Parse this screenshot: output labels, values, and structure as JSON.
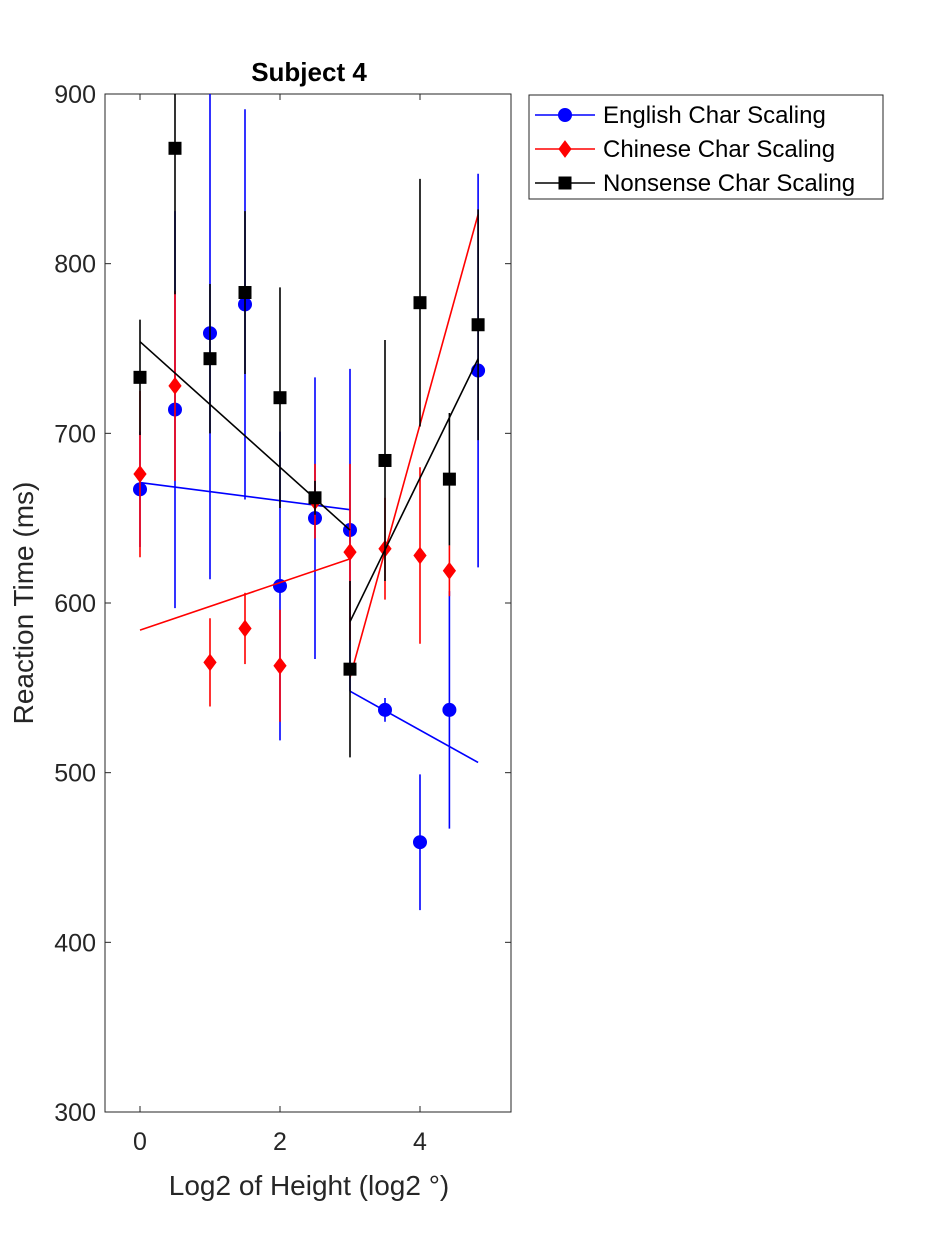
{
  "chart_data": {
    "type": "scatter",
    "title": "Subject 4",
    "xlabel": "Log2 of Height (log2 °)",
    "ylabel": "Reaction Time (ms)",
    "xlim": [
      -0.5,
      5.3
    ],
    "ylim": [
      300,
      900
    ],
    "xticks": [
      0,
      2,
      4
    ],
    "yticks": [
      300,
      400,
      500,
      600,
      700,
      800,
      900
    ],
    "legend_position": "outside-top-right",
    "series": [
      {
        "name": "English Char Scaling",
        "color": "#0000ff",
        "marker": "circle",
        "points": [
          {
            "x": 0,
            "y": 667,
            "lo": 633,
            "hi": 701
          },
          {
            "x": 0.5,
            "y": 714,
            "lo": 597,
            "hi": 831
          },
          {
            "x": 1,
            "y": 759,
            "lo": 614,
            "hi": 904
          },
          {
            "x": 1.5,
            "y": 776,
            "lo": 661,
            "hi": 891
          },
          {
            "x": 2,
            "y": 610,
            "lo": 519,
            "hi": 701
          },
          {
            "x": 2.5,
            "y": 650,
            "lo": 567,
            "hi": 733
          },
          {
            "x": 3,
            "y": 643,
            "lo": 548,
            "hi": 738
          },
          {
            "x": 3.5,
            "y": 537,
            "lo": 530,
            "hi": 544
          },
          {
            "x": 4,
            "y": 459,
            "lo": 419,
            "hi": 499
          },
          {
            "x": 4.42,
            "y": 537,
            "lo": 467,
            "hi": 607
          },
          {
            "x": 4.83,
            "y": 737,
            "lo": 621,
            "hi": 853
          }
        ],
        "fits": [
          {
            "x": [
              0,
              3
            ],
            "y": [
              671,
              655
            ]
          },
          {
            "x": [
              3,
              4.83
            ],
            "y": [
              548,
              506
            ]
          }
        ]
      },
      {
        "name": "Chinese Char Scaling",
        "color": "#ff0000",
        "marker": "diamond",
        "points": [
          {
            "x": 0,
            "y": 676,
            "lo": 627,
            "hi": 725
          },
          {
            "x": 0.5,
            "y": 728,
            "lo": 672,
            "hi": 784
          },
          {
            "x": 1,
            "y": 565,
            "lo": 539,
            "hi": 591
          },
          {
            "x": 1.5,
            "y": 585,
            "lo": 564,
            "hi": 606
          },
          {
            "x": 2,
            "y": 563,
            "lo": 530,
            "hi": 596
          },
          {
            "x": 2.5,
            "y": 660,
            "lo": 638,
            "hi": 682
          },
          {
            "x": 3,
            "y": 630,
            "lo": 578,
            "hi": 682
          },
          {
            "x": 3.5,
            "y": 632,
            "lo": 602,
            "hi": 662
          },
          {
            "x": 4,
            "y": 628,
            "lo": 576,
            "hi": 680
          },
          {
            "x": 4.42,
            "y": 619,
            "lo": 604,
            "hi": 634
          }
        ],
        "fits": [
          {
            "x": [
              0,
              3
            ],
            "y": [
              584,
              626
            ]
          },
          {
            "x": [
              3,
              4.83
            ],
            "y": [
              556,
              829
            ]
          }
        ]
      },
      {
        "name": "Nonsense Char Scaling",
        "color": "#000000",
        "marker": "square",
        "points": [
          {
            "x": 0,
            "y": 733,
            "lo": 699,
            "hi": 767
          },
          {
            "x": 0.5,
            "y": 868,
            "lo": 782,
            "hi": 954
          },
          {
            "x": 1,
            "y": 744,
            "lo": 700,
            "hi": 788
          },
          {
            "x": 1.5,
            "y": 783,
            "lo": 735,
            "hi": 831
          },
          {
            "x": 2,
            "y": 721,
            "lo": 656,
            "hi": 786
          },
          {
            "x": 2.5,
            "y": 662,
            "lo": 652,
            "hi": 672
          },
          {
            "x": 3,
            "y": 561,
            "lo": 509,
            "hi": 613
          },
          {
            "x": 3.5,
            "y": 684,
            "lo": 613,
            "hi": 755
          },
          {
            "x": 4,
            "y": 777,
            "lo": 704,
            "hi": 850
          },
          {
            "x": 4.42,
            "y": 673,
            "lo": 634,
            "hi": 712
          },
          {
            "x": 4.83,
            "y": 764,
            "lo": 696,
            "hi": 832
          }
        ],
        "fits": [
          {
            "x": [
              0,
              3
            ],
            "y": [
              754,
              643
            ]
          },
          {
            "x": [
              3,
              4.83
            ],
            "y": [
              589,
              744
            ]
          }
        ]
      }
    ]
  }
}
